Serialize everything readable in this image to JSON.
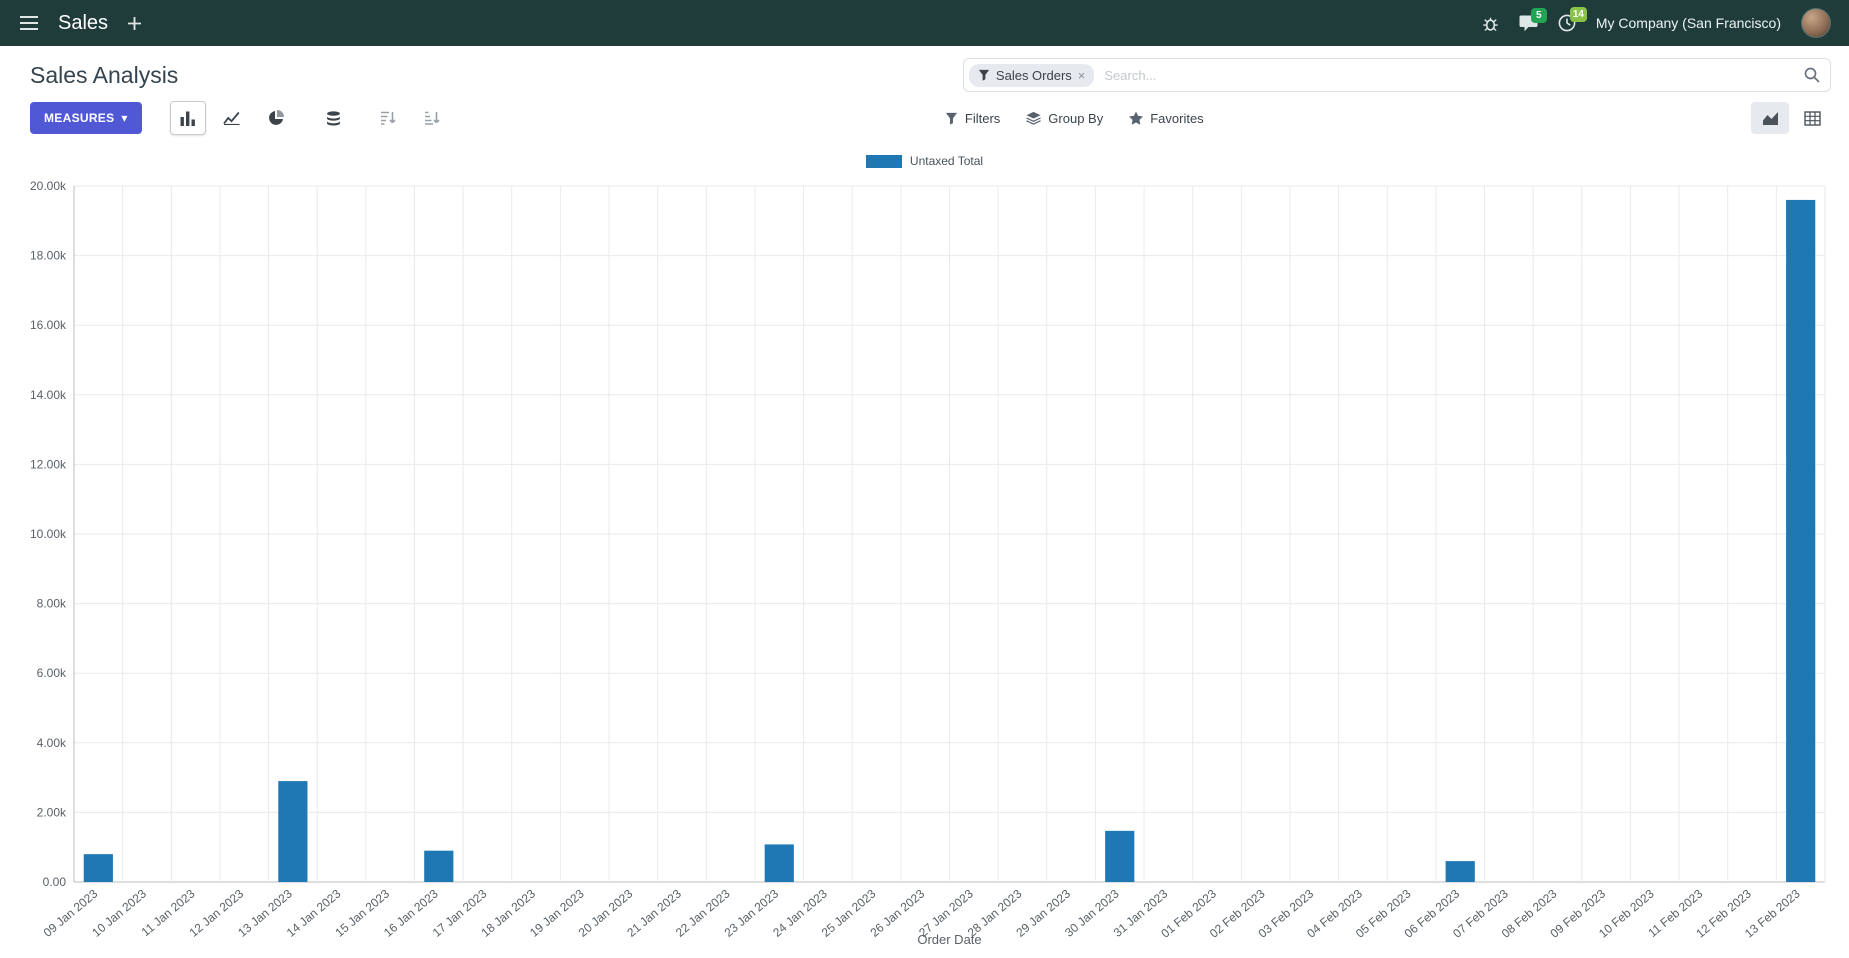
{
  "navbar": {
    "app_menu_title": "Sales",
    "company_name": "My Company (San Francisco)",
    "message_count": "5",
    "activity_count": "14"
  },
  "control_panel": {
    "breadcrumb_title": "Sales Analysis",
    "measures_button": "MEASURES",
    "caret": "▾",
    "search": {
      "facet_label": "Sales Orders",
      "facet_remove": "×",
      "placeholder": "Search..."
    },
    "filters_button": "Filters",
    "group_by_button": "Group By",
    "favorites_button": "Favorites"
  },
  "chart_data": {
    "type": "bar",
    "title": "",
    "xlabel": "Order Date",
    "ylabel": "",
    "ylim": [
      0,
      20000
    ],
    "ytick_step": 2000,
    "ytick_labels": [
      "0.00",
      "2.00k",
      "4.00k",
      "6.00k",
      "8.00k",
      "10.00k",
      "12.00k",
      "14.00k",
      "16.00k",
      "18.00k",
      "20.00k"
    ],
    "grid": true,
    "legend_position": "top",
    "categories": [
      "09 Jan 2023",
      "10 Jan 2023",
      "11 Jan 2023",
      "12 Jan 2023",
      "13 Jan 2023",
      "14 Jan 2023",
      "15 Jan 2023",
      "16 Jan 2023",
      "17 Jan 2023",
      "18 Jan 2023",
      "19 Jan 2023",
      "20 Jan 2023",
      "21 Jan 2023",
      "22 Jan 2023",
      "23 Jan 2023",
      "24 Jan 2023",
      "25 Jan 2023",
      "26 Jan 2023",
      "27 Jan 2023",
      "28 Jan 2023",
      "29 Jan 2023",
      "30 Jan 2023",
      "31 Jan 2023",
      "01 Feb 2023",
      "02 Feb 2023",
      "03 Feb 2023",
      "04 Feb 2023",
      "05 Feb 2023",
      "06 Feb 2023",
      "07 Feb 2023",
      "08 Feb 2023",
      "09 Feb 2023",
      "10 Feb 2023",
      "11 Feb 2023",
      "12 Feb 2023",
      "13 Feb 2023"
    ],
    "series": [
      {
        "name": "Untaxed Total",
        "color": "#1f77b4",
        "values": [
          800,
          0,
          0,
          0,
          2900,
          0,
          0,
          900,
          0,
          0,
          0,
          0,
          0,
          0,
          1080,
          0,
          0,
          0,
          0,
          0,
          0,
          1470,
          0,
          0,
          0,
          0,
          0,
          0,
          600,
          0,
          0,
          0,
          0,
          0,
          0,
          19600
        ]
      }
    ]
  },
  "colors": {
    "navbar_bg": "#1f3c3a",
    "accent": "#5158d6",
    "bar_blue": "#1f77b4",
    "badge_message": "#23a455",
    "badge_activity": "#8bc34a"
  }
}
